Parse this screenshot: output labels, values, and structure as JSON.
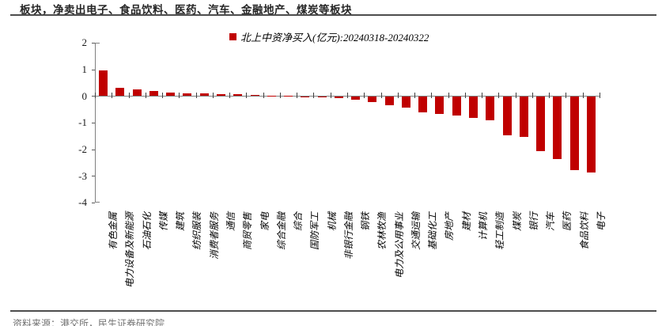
{
  "header": {
    "title": "板块，净卖出电子、食品饮料、医药、汽车、金融地产、煤炭等板块"
  },
  "legend": {
    "label": "北上中资净买入(亿元):20240318-20240322",
    "marker_color": "#C00000"
  },
  "chart_data": {
    "type": "bar",
    "title": "",
    "legend_entries": [
      "北上中资净买入(亿元):20240318-20240322"
    ],
    "legend_position": "top-center",
    "grid": false,
    "bar_color": "#C00000",
    "ylim": [
      -4,
      2
    ],
    "yticks": [
      2,
      1,
      0,
      -1,
      -2,
      -3,
      -4
    ],
    "xlabel": "",
    "ylabel": "",
    "categories": [
      "有色金属",
      "电力设备及新能源",
      "石油石化",
      "传媒",
      "建筑",
      "纺织服装",
      "消费者服务",
      "通信",
      "商贸零售",
      "家电",
      "综合金融",
      "综合",
      "国防军工",
      "机械",
      "非银行金融",
      "钢铁",
      "农林牧渔",
      "电力及公用事业",
      "交通运输",
      "基础化工",
      "房地产",
      "建材",
      "计算机",
      "轻工制造",
      "煤炭",
      "银行",
      "汽车",
      "医药",
      "食品饮料",
      "电子"
    ],
    "values": [
      0.95,
      0.32,
      0.26,
      0.2,
      0.14,
      0.11,
      0.09,
      0.08,
      0.07,
      0.05,
      0.02,
      0.01,
      -0.01,
      -0.03,
      -0.06,
      -0.12,
      -0.2,
      -0.33,
      -0.4,
      -0.58,
      -0.63,
      -0.7,
      -0.8,
      -0.88,
      -1.45,
      -1.5,
      -2.05,
      -2.33,
      -2.75,
      -2.85
    ]
  },
  "footer": {
    "source": "资料来源：港交所，民生证券研究院"
  },
  "colors": {
    "bar": "#C00000",
    "axis": "#808080",
    "tick": "#404040",
    "title_text": "#262626",
    "rule": "#4d4d4d",
    "source_text": "#737373"
  }
}
